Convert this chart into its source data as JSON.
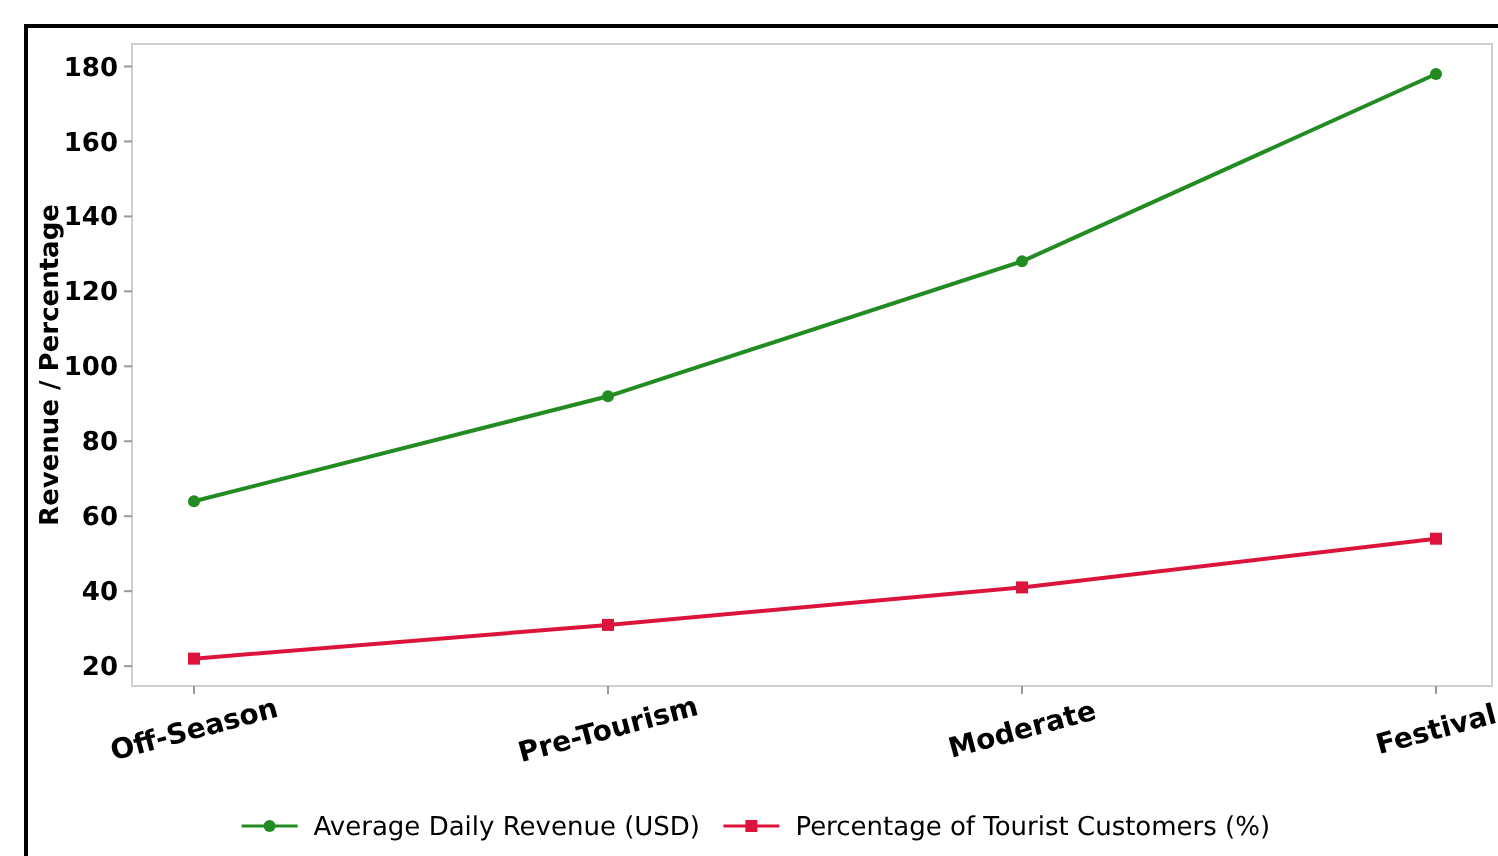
{
  "chart_data": {
    "type": "line",
    "ylabel": "Revenue / Percentage",
    "categories": [
      "Off-Season",
      "Pre-Tourism",
      "Moderate",
      "Festival"
    ],
    "series": [
      {
        "name": "Average Daily Revenue (USD)",
        "color": "#228b22",
        "values": [
          64,
          92,
          128,
          178
        ],
        "marker": "circle"
      },
      {
        "name": "Percentage of Tourist Customers (%)",
        "color": "#dc143c",
        "values": [
          22,
          31,
          41,
          54
        ],
        "marker": "square"
      }
    ],
    "ylim": [
      14.7,
      186
    ],
    "yticks": [
      20,
      40,
      60,
      80,
      100,
      120,
      140,
      160,
      180
    ],
    "grid": false,
    "legend": "bottom",
    "line_style": "solid"
  }
}
